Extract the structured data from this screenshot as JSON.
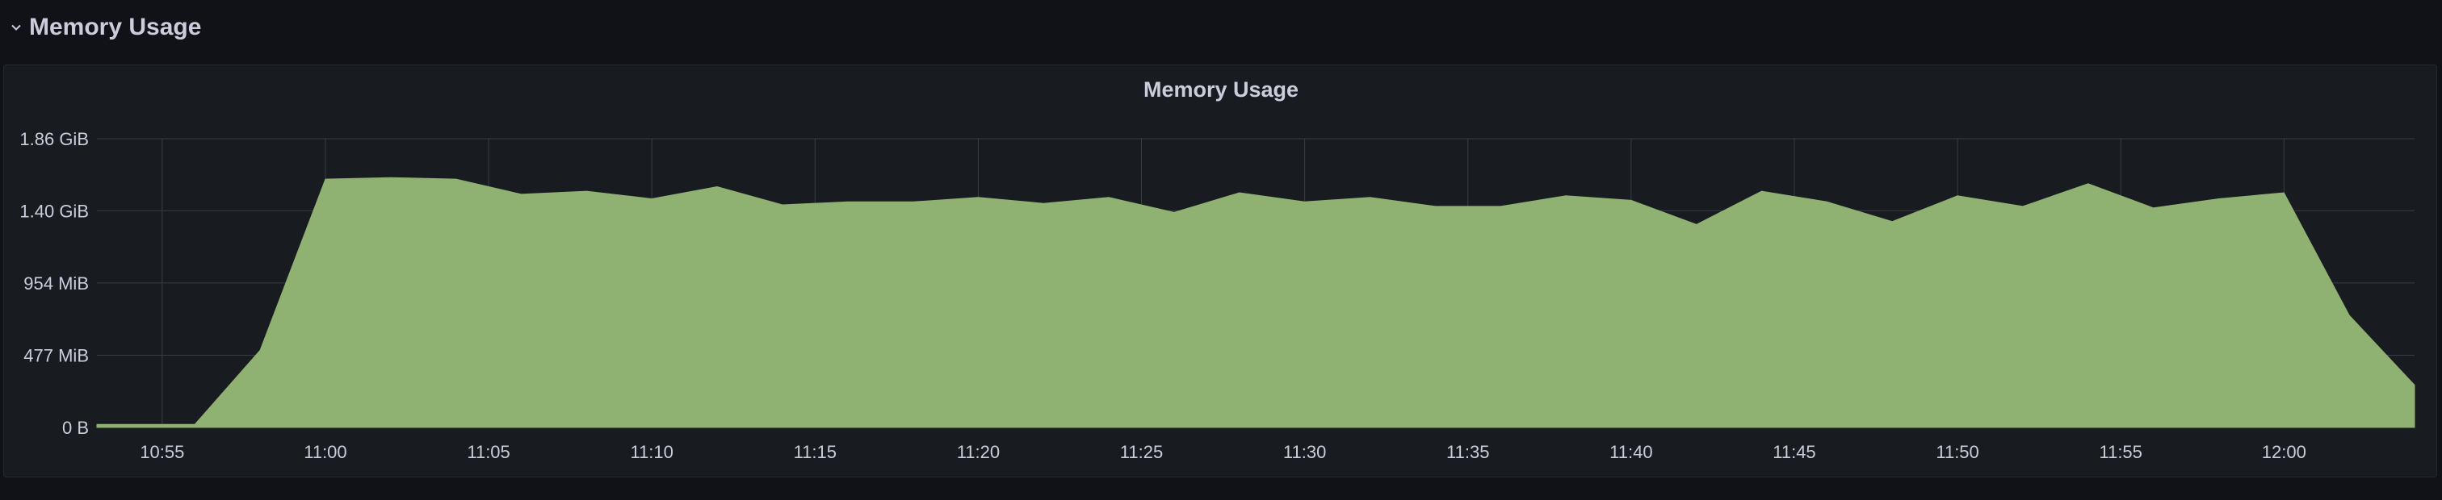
{
  "row": {
    "title": "Memory Usage",
    "collapse_icon": "chevron-down-icon"
  },
  "panel": {
    "title": "Memory Usage"
  },
  "colors": {
    "background": "#111217",
    "panel_bg": "#181b1f",
    "fill": "#8fb172",
    "grid": "#3a3d44",
    "text": "#ccccdc"
  },
  "chart_data": {
    "type": "area",
    "title": "Memory Usage",
    "xlabel": "",
    "ylabel": "",
    "y_unit": "MiB",
    "ylim": [
      0,
      1907
    ],
    "y_ticks": [
      {
        "label": "0 B",
        "value": 0
      },
      {
        "label": "477 MiB",
        "value": 477
      },
      {
        "label": "954 MiB",
        "value": 954
      },
      {
        "label": "1.40 GiB",
        "value": 1431
      },
      {
        "label": "1.86 GiB",
        "value": 1907
      }
    ],
    "x_range": [
      "10:53",
      "12:04"
    ],
    "x_ticks": [
      "10:55",
      "11:00",
      "11:05",
      "11:10",
      "11:15",
      "11:20",
      "11:25",
      "11:30",
      "11:35",
      "11:40",
      "11:45",
      "11:50",
      "11:55",
      "12:00"
    ],
    "grid": true,
    "series": [
      {
        "name": "",
        "points": [
          [
            "10:53",
            20
          ],
          [
            "10:54",
            20
          ],
          [
            "10:55",
            20
          ],
          [
            "10:56",
            20
          ],
          [
            "10:58",
            510
          ],
          [
            "11:00",
            1640
          ],
          [
            "11:02",
            1650
          ],
          [
            "11:04",
            1640
          ],
          [
            "11:06",
            1540
          ],
          [
            "11:08",
            1560
          ],
          [
            "11:10",
            1510
          ],
          [
            "11:12",
            1590
          ],
          [
            "11:14",
            1470
          ],
          [
            "11:16",
            1490
          ],
          [
            "11:18",
            1490
          ],
          [
            "11:20",
            1520
          ],
          [
            "11:22",
            1480
          ],
          [
            "11:24",
            1520
          ],
          [
            "11:26",
            1420
          ],
          [
            "11:28",
            1550
          ],
          [
            "11:30",
            1490
          ],
          [
            "11:32",
            1520
          ],
          [
            "11:34",
            1460
          ],
          [
            "11:36",
            1460
          ],
          [
            "11:38",
            1530
          ],
          [
            "11:40",
            1500
          ],
          [
            "11:42",
            1340
          ],
          [
            "11:44",
            1560
          ],
          [
            "11:46",
            1490
          ],
          [
            "11:48",
            1360
          ],
          [
            "11:50",
            1530
          ],
          [
            "11:52",
            1460
          ],
          [
            "11:54",
            1610
          ],
          [
            "11:56",
            1450
          ],
          [
            "11:58",
            1510
          ],
          [
            "12:00",
            1550
          ],
          [
            "12:02",
            740
          ],
          [
            "12:04",
            280
          ]
        ]
      }
    ]
  }
}
